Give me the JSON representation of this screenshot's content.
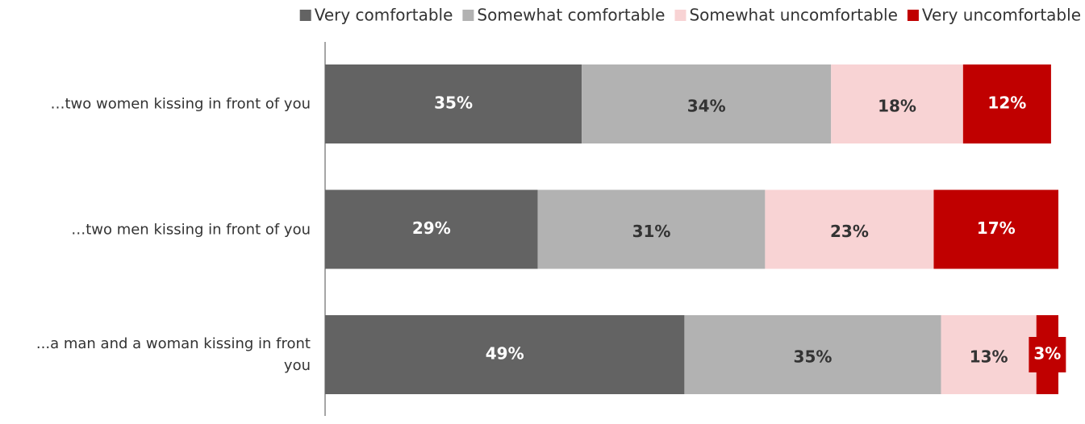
{
  "chart_data": {
    "type": "stacked-bar-horizontal",
    "categories": [
      "…two women kissing in front of you",
      "…two men kissing in front of you",
      "...a man and a woman kissing in front you"
    ],
    "xlim": [
      0,
      100
    ],
    "legend": "top-right",
    "series": [
      {
        "name": "Very comfortable",
        "color": "#636363",
        "values": [
          35,
          29,
          49
        ],
        "value_labels": [
          "35%",
          "29%",
          "49%"
        ]
      },
      {
        "name": "Somewhat comfortable",
        "color": "#b2b2b2",
        "values": [
          34,
          31,
          35
        ],
        "value_labels": [
          "34%",
          "31%",
          "35%"
        ]
      },
      {
        "name": "Somewhat uncomfortable",
        "color": "#f8d3d4",
        "values": [
          18,
          23,
          13
        ],
        "value_labels": [
          "18%",
          "23%",
          "13%"
        ]
      },
      {
        "name": "Very uncomfortable",
        "color": "#c00000",
        "values": [
          12,
          17,
          3
        ],
        "value_labels": [
          "12%",
          "17%",
          "3%"
        ]
      }
    ]
  }
}
